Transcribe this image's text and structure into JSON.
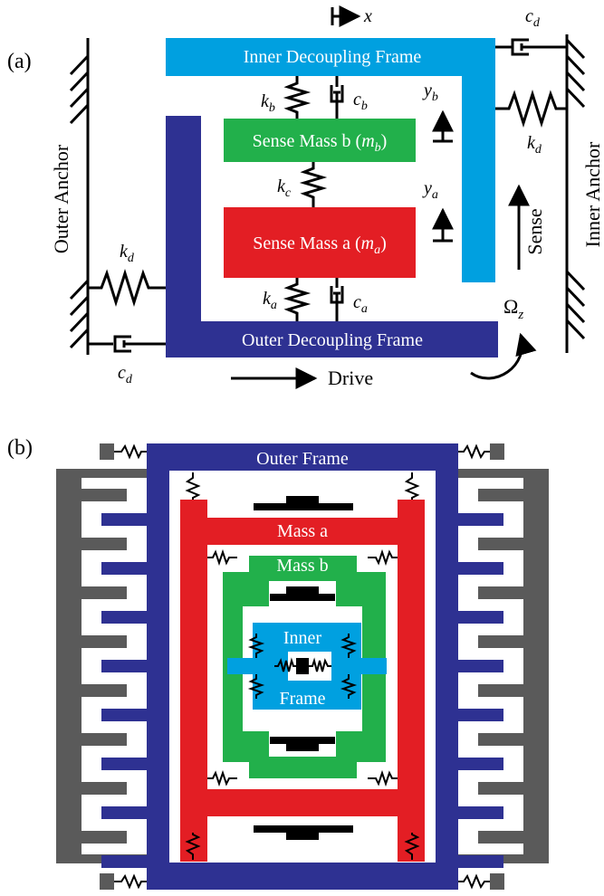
{
  "panels": {
    "a": {
      "tag": "(a)",
      "inner_frame": "Inner Decoupling Frame",
      "outer_frame": "Outer Decoupling Frame",
      "sense_mass_b": "Sense Mass b (",
      "sense_mass_b_sym": "m",
      "sense_mass_b_sub": "b",
      "sense_mass_a": "Sense Mass a (",
      "sense_mass_a_sym": "m",
      "sense_mass_a_sub": "a",
      "close_paren": ")",
      "outer_anchor": "Outer Anchor",
      "inner_anchor": "Inner Anchor",
      "drive": "Drive",
      "sense": "Sense",
      "x_axis": "x",
      "omega": "Ω",
      "omega_sub": "z",
      "k": "k",
      "c": "c",
      "y": "y",
      "sub_a": "a",
      "sub_b": "b",
      "sub_c": "c",
      "sub_d": "d"
    },
    "b": {
      "tag": "(b)",
      "outer_frame": "Outer Frame",
      "mass_a": "Mass a",
      "mass_b": "Mass b",
      "inner_1": "Inner",
      "inner_2": "Frame"
    }
  },
  "colors": {
    "inner_frame": "#00a0e0",
    "outer_frame": "#2e3192",
    "mass_b": "#22b04b",
    "mass_a": "#e31e24",
    "anchor": "#5a5a5a"
  }
}
